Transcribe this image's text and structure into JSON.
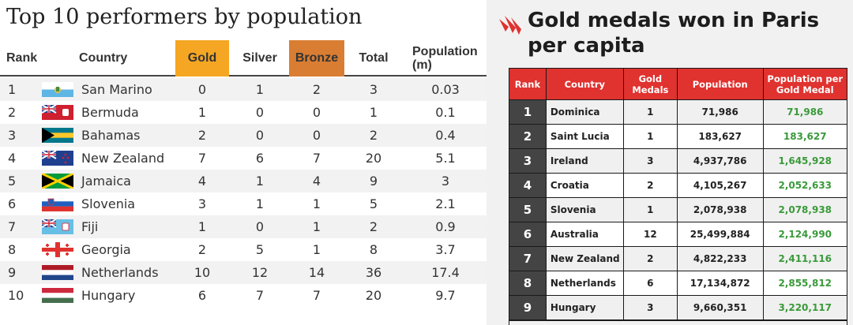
{
  "left": {
    "title": "Top 10 performers by population",
    "headers": {
      "rank": "Rank",
      "country": "Country",
      "gold": "Gold",
      "silver": "Silver",
      "bronze": "Bronze",
      "total": "Total",
      "population_line1": "Population",
      "population_line2": "(m)"
    },
    "colors": {
      "gold_header": "#f5a623",
      "bronze_header": "#d97d32"
    },
    "rows": [
      {
        "rank": "1",
        "flag": "san-marino-flag-icon",
        "country": "San Marino",
        "gold": "0",
        "silver": "1",
        "bronze": "2",
        "total": "3",
        "population": "0.03"
      },
      {
        "rank": "2",
        "flag": "bermuda-flag-icon",
        "country": "Bermuda",
        "gold": "1",
        "silver": "0",
        "bronze": "0",
        "total": "1",
        "population": "0.1"
      },
      {
        "rank": "3",
        "flag": "bahamas-flag-icon",
        "country": "Bahamas",
        "gold": "2",
        "silver": "0",
        "bronze": "0",
        "total": "2",
        "population": "0.4"
      },
      {
        "rank": "4",
        "flag": "new-zealand-flag-icon",
        "country": "New Zealand",
        "gold": "7",
        "silver": "6",
        "bronze": "7",
        "total": "20",
        "population": "5.1"
      },
      {
        "rank": "5",
        "flag": "jamaica-flag-icon",
        "country": "Jamaica",
        "gold": "4",
        "silver": "1",
        "bronze": "4",
        "total": "9",
        "population": "3"
      },
      {
        "rank": "6",
        "flag": "slovenia-flag-icon",
        "country": "Slovenia",
        "gold": "3",
        "silver": "1",
        "bronze": "1",
        "total": "5",
        "population": "2.1"
      },
      {
        "rank": "7",
        "flag": "fiji-flag-icon",
        "country": "Fiji",
        "gold": "1",
        "silver": "0",
        "bronze": "1",
        "total": "2",
        "population": "0.9"
      },
      {
        "rank": "8",
        "flag": "georgia-flag-icon",
        "country": "Georgia",
        "gold": "2",
        "silver": "5",
        "bronze": "1",
        "total": "8",
        "population": "3.7"
      },
      {
        "rank": "9",
        "flag": "netherlands-flag-icon",
        "country": "Netherlands",
        "gold": "10",
        "silver": "12",
        "bronze": "14",
        "total": "36",
        "population": "17.4"
      },
      {
        "rank": "10",
        "flag": "hungary-flag-icon",
        "country": "Hungary",
        "gold": "6",
        "silver": "7",
        "bronze": "7",
        "total": "20",
        "population": "9.7"
      }
    ]
  },
  "right": {
    "title_line1": "Gold medals won in Paris",
    "title_line2": "per capita",
    "logo": "sbs-logo-icon",
    "colors": {
      "header_bg": "#e0322f",
      "rank_bg": "#444444",
      "per_medal_text": "#3a9a3a"
    },
    "headers": {
      "rank": "Rank",
      "country": "Country",
      "gold_line1": "Gold",
      "gold_line2": "Medals",
      "population": "Population",
      "per_medal_line1": "Population per",
      "per_medal_line2": "Gold Medal"
    },
    "rows": [
      {
        "rank": "1",
        "country": "Dominica",
        "gold": "1",
        "population": "71,986",
        "per_medal": "71,986"
      },
      {
        "rank": "2",
        "country": "Saint Lucia",
        "gold": "1",
        "population": "183,627",
        "per_medal": "183,627"
      },
      {
        "rank": "3",
        "country": "Ireland",
        "gold": "3",
        "population": "4,937,786",
        "per_medal": "1,645,928"
      },
      {
        "rank": "4",
        "country": "Croatia",
        "gold": "2",
        "population": "4,105,267",
        "per_medal": "2,052,633"
      },
      {
        "rank": "5",
        "country": "Slovenia",
        "gold": "1",
        "population": "2,078,938",
        "per_medal": "2,078,938"
      },
      {
        "rank": "6",
        "country": "Australia",
        "gold": "12",
        "population": "25,499,884",
        "per_medal": "2,124,990"
      },
      {
        "rank": "7",
        "country": "New Zealand",
        "gold": "2",
        "population": "4,822,233",
        "per_medal": "2,411,116"
      },
      {
        "rank": "8",
        "country": "Netherlands",
        "gold": "6",
        "population": "17,134,872",
        "per_medal": "2,855,812"
      },
      {
        "rank": "9",
        "country": "Hungary",
        "gold": "3",
        "population": "9,660,351",
        "per_medal": "3,220,117"
      }
    ]
  }
}
